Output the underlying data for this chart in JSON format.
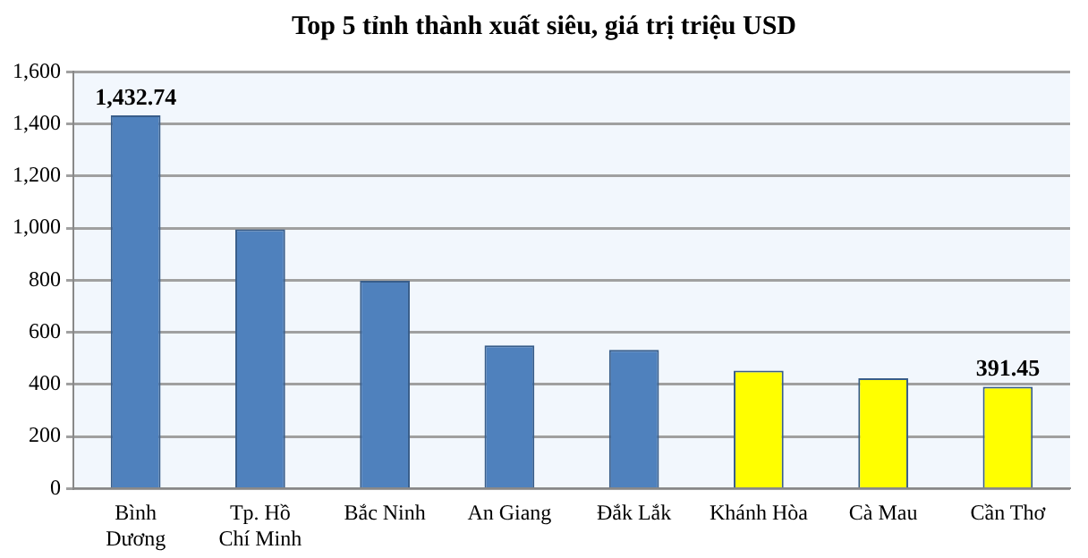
{
  "chart_data": {
    "type": "bar",
    "title": "Top 5 tỉnh thành xuất siêu, giá trị triệu USD",
    "categories": [
      "Bình Dương",
      "Tp. Hồ Chí Minh",
      "Bắc Ninh",
      "An Giang",
      "Đắk Lắk",
      "Khánh Hòa",
      "Cà Mau",
      "Cần Thơ"
    ],
    "values": [
      1432.74,
      995,
      798,
      550,
      533,
      453,
      424,
      391.45
    ],
    "colors": [
      "#4f81bd",
      "#4f81bd",
      "#4f81bd",
      "#4f81bd",
      "#4f81bd",
      "#ffff00",
      "#ffff00",
      "#ffff00"
    ],
    "value_labels": [
      "1,432.74",
      null,
      null,
      null,
      null,
      null,
      null,
      "391.45"
    ],
    "ylim": [
      0,
      1600
    ],
    "yticks": [
      {
        "value": 0,
        "label": "0"
      },
      {
        "value": 200,
        "label": "200"
      },
      {
        "value": 400,
        "label": "400"
      },
      {
        "value": 600,
        "label": "600"
      },
      {
        "value": 800,
        "label": "800"
      },
      {
        "value": 1000,
        "label": "1,000"
      },
      {
        "value": 1200,
        "label": "1,200"
      },
      {
        "value": 1400,
        "label": "1,400"
      },
      {
        "value": 1600,
        "label": "1,600"
      }
    ],
    "grid": "y",
    "legend": false
  }
}
